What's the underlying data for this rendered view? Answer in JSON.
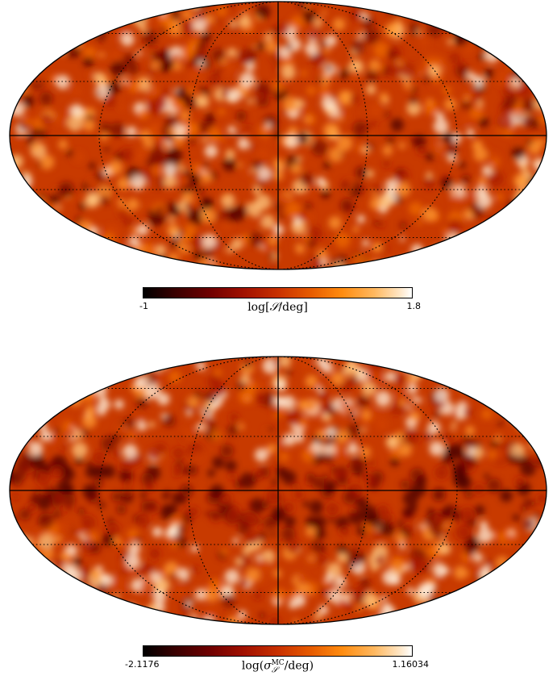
{
  "maps": [
    {
      "projection": "mollweide",
      "colormap": "afmhot",
      "colorbar": {
        "min_label": "-1",
        "max_label": "1.8",
        "label": "log[S/deg]"
      }
    },
    {
      "projection": "mollweide",
      "colormap": "afmhot",
      "colorbar": {
        "min_label": "-2.1176",
        "max_label": "1.16034",
        "label": "log(σ_S^MC/deg)"
      }
    }
  ]
}
